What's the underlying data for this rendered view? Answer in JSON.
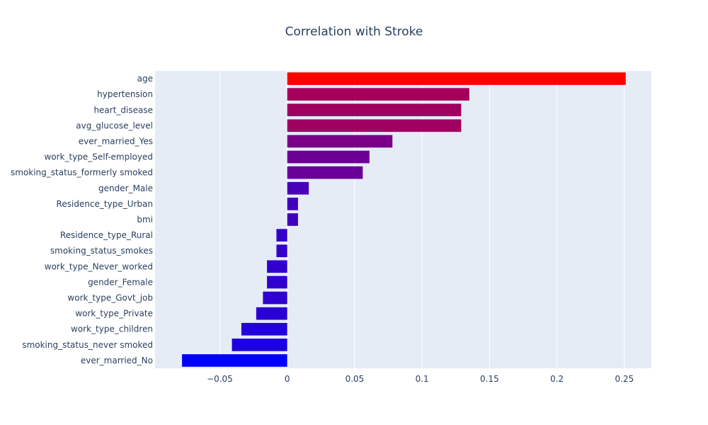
{
  "chart_data": {
    "type": "bar",
    "orientation": "horizontal",
    "title": "Correlation with Stroke",
    "xlabel": "",
    "ylabel": "",
    "xlim": [
      -0.098,
      0.27
    ],
    "xticks": [
      -0.05,
      0,
      0.05,
      0.1,
      0.15,
      0.2,
      0.25
    ],
    "xtick_labels": [
      "−0.05",
      "0",
      "0.05",
      "0.1",
      "0.15",
      "0.2",
      "0.25"
    ],
    "grid": true,
    "colorscale": [
      "#0000ff",
      "#ff0000"
    ],
    "categories": [
      "age",
      "hypertension",
      "heart_disease",
      "avg_glucose_level",
      "ever_married_Yes",
      "work_type_Self-employed",
      "smoking_status_formerly smoked",
      "gender_Male",
      "Residence_type_Urban",
      "bmi",
      "Residence_type_Rural",
      "smoking_status_smokes",
      "work_type_Never_worked",
      "gender_Female",
      "work_type_Govt_job",
      "work_type_Private",
      "work_type_children",
      "smoking_status_never smoked",
      "ever_married_No"
    ],
    "values": [
      0.251,
      0.135,
      0.129,
      0.129,
      0.078,
      0.061,
      0.056,
      0.016,
      0.008,
      0.008,
      -0.008,
      -0.008,
      -0.015,
      -0.015,
      -0.018,
      -0.023,
      -0.034,
      -0.041,
      -0.078
    ]
  }
}
